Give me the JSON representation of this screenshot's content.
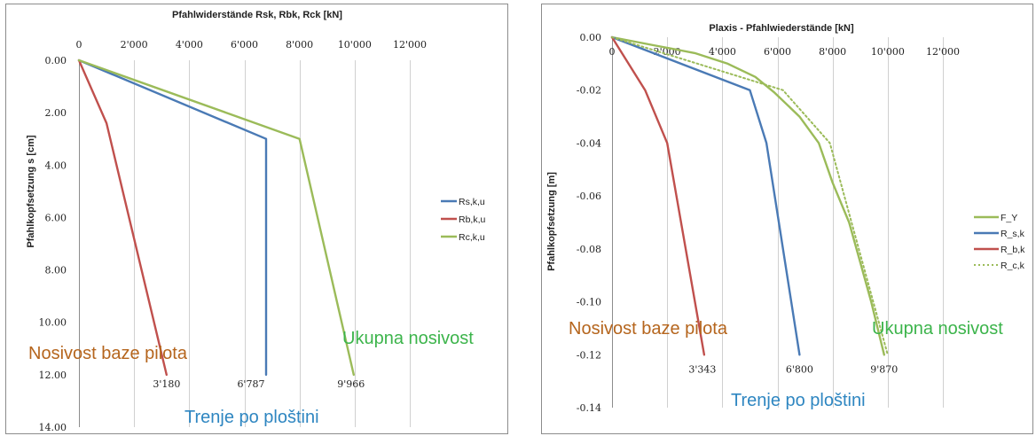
{
  "colors": {
    "blue": "#4a7ab5",
    "red": "#c0504d",
    "green": "#9bbb59",
    "ann_brown": "#b5651d",
    "ann_green": "#3cb44b",
    "ann_blue": "#2e86c1",
    "grid": "#d0d0d0"
  },
  "chart_data": [
    {
      "type": "line",
      "title": "Pfahlwiderstände Rsk, Rbk, Rck [kN]",
      "xlabel": "",
      "ylabel": "Pfahlkopfsetzung s [cm]",
      "xlim": [
        0,
        12000
      ],
      "ylim": [
        0,
        14
      ],
      "y_inverted": true,
      "x_ticks": [
        "0",
        "2'000",
        "4'000",
        "6'000",
        "8'000",
        "10'000",
        "12'000"
      ],
      "y_ticks": [
        "0.00",
        "2.00",
        "4.00",
        "6.00",
        "8.00",
        "10.00",
        "12.00",
        "14.00"
      ],
      "grid": "vertical",
      "legend": "right",
      "series": [
        {
          "name": "Rs,k,u",
          "color": "blue",
          "dash": "",
          "points": [
            [
              0,
              0
            ],
            [
              6787,
              3.0
            ],
            [
              6787,
              12.0
            ]
          ]
        },
        {
          "name": "Rb,k,u",
          "color": "red",
          "dash": "",
          "points": [
            [
              0,
              0
            ],
            [
              1000,
              2.4
            ],
            [
              3180,
              12.0
            ]
          ]
        },
        {
          "name": "Rc,k,u",
          "color": "green",
          "dash": "",
          "points": [
            [
              0,
              0
            ],
            [
              8000,
              3.0
            ],
            [
              9966,
              12.0
            ]
          ]
        }
      ],
      "data_labels": [
        {
          "text": "3'180",
          "x": 3180,
          "y": 12.0
        },
        {
          "text": "6'787",
          "x": 6787,
          "y": 12.0
        },
        {
          "text": "9'966",
          "x": 9966,
          "y": 12.0
        }
      ],
      "annotations": [
        {
          "text": "Nosivost baze pilota",
          "color": "ann_brown"
        },
        {
          "text": "Ukupna nosivost",
          "color": "ann_green"
        },
        {
          "text": "Trenje po ploštini",
          "color": "ann_blue"
        }
      ]
    },
    {
      "type": "line",
      "title": "Plaxis - Pfahlwiederstände [kN]",
      "xlabel": "",
      "ylabel": "Pfahlkopfsetzung [m]",
      "xlim": [
        0,
        12000
      ],
      "ylim": [
        -0.14,
        0
      ],
      "x_ticks": [
        "0",
        "2'000",
        "4'000",
        "6'000",
        "8'000",
        "10'000",
        "12'000"
      ],
      "y_ticks": [
        "0.00",
        "-0.02",
        "-0.04",
        "-0.06",
        "-0.08",
        "-0.10",
        "-0.12",
        "-0.14"
      ],
      "grid": "vertical",
      "legend": "right",
      "series": [
        {
          "name": "F_Y",
          "color": "green",
          "dash": "",
          "points": [
            [
              0,
              0
            ],
            [
              1500,
              -0.003
            ],
            [
              3000,
              -0.006
            ],
            [
              4200,
              -0.01
            ],
            [
              5200,
              -0.015
            ],
            [
              5900,
              -0.021
            ],
            [
              6800,
              -0.03
            ],
            [
              7500,
              -0.04
            ],
            [
              8000,
              -0.055
            ],
            [
              8600,
              -0.07
            ],
            [
              9000,
              -0.085
            ],
            [
              9400,
              -0.1
            ],
            [
              9870,
              -0.12
            ]
          ]
        },
        {
          "name": "R_s,k",
          "color": "blue",
          "dash": "",
          "points": [
            [
              0,
              0
            ],
            [
              5000,
              -0.02
            ],
            [
              5600,
              -0.04
            ],
            [
              6800,
              -0.12
            ]
          ]
        },
        {
          "name": "R_b,k",
          "color": "red",
          "dash": "",
          "points": [
            [
              0,
              0
            ],
            [
              1200,
              -0.02
            ],
            [
              2000,
              -0.04
            ],
            [
              3343,
              -0.12
            ]
          ]
        },
        {
          "name": "R_c,k",
          "color": "green",
          "dash": "2,3",
          "points": [
            [
              0,
              0
            ],
            [
              6200,
              -0.02
            ],
            [
              7900,
              -0.04
            ],
            [
              10000,
              -0.12
            ]
          ]
        }
      ],
      "data_labels": [
        {
          "text": "3'343",
          "x": 3343,
          "y": -0.12
        },
        {
          "text": "6'800",
          "x": 6800,
          "y": -0.12
        },
        {
          "text": "9'870",
          "x": 9870,
          "y": -0.12
        }
      ],
      "annotations": [
        {
          "text": "Nosivost baze pilota",
          "color": "ann_brown"
        },
        {
          "text": "Ukupna nosivost",
          "color": "ann_green"
        },
        {
          "text": "Trenje po ploštini",
          "color": "ann_blue"
        }
      ]
    }
  ]
}
